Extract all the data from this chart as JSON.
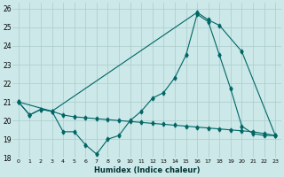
{
  "xlabel": "Humidex (Indice chaleur)",
  "background_color": "#cce8e8",
  "grid_color": "#aacccc",
  "line_color": "#006666",
  "xlim": [
    -0.5,
    23.5
  ],
  "ylim": [
    18,
    26.3
  ],
  "yticks": [
    18,
    19,
    20,
    21,
    22,
    23,
    24,
    25,
    26
  ],
  "xticks": [
    0,
    1,
    2,
    3,
    4,
    5,
    6,
    7,
    8,
    9,
    10,
    11,
    12,
    13,
    14,
    15,
    16,
    17,
    18,
    19,
    20,
    21,
    22,
    23
  ],
  "line1_x": [
    0,
    1,
    2,
    3,
    4,
    5,
    6,
    7,
    8,
    9,
    10,
    11,
    12,
    13,
    14,
    15,
    16,
    17,
    18,
    19,
    20,
    21,
    22,
    23
  ],
  "line1_y": [
    21.0,
    20.3,
    20.6,
    20.5,
    19.4,
    19.4,
    18.7,
    18.2,
    19.0,
    19.2,
    20.0,
    20.5,
    21.2,
    21.5,
    22.3,
    23.5,
    25.7,
    25.3,
    23.5,
    21.7,
    19.7,
    19.3,
    19.2,
    19.2
  ],
  "line2_x": [
    0,
    3,
    16,
    17,
    18,
    20,
    23
  ],
  "line2_y": [
    21.0,
    20.5,
    25.8,
    25.4,
    25.1,
    23.7,
    19.2
  ],
  "line3_x": [
    0,
    1,
    2,
    3,
    4,
    5,
    6,
    7,
    8,
    9,
    10,
    11,
    12,
    13,
    14,
    15,
    16,
    17,
    18,
    19,
    20,
    21,
    22,
    23
  ],
  "line3_y": [
    21.0,
    20.3,
    20.6,
    20.5,
    20.3,
    20.2,
    20.15,
    20.1,
    20.05,
    20.0,
    19.95,
    19.9,
    19.85,
    19.8,
    19.75,
    19.7,
    19.65,
    19.6,
    19.55,
    19.5,
    19.45,
    19.4,
    19.3,
    19.2
  ]
}
